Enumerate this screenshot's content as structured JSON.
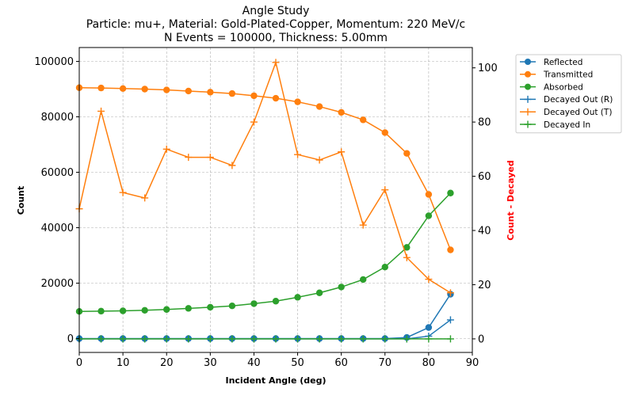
{
  "chart_data": {
    "type": "line",
    "title_lines": [
      "Angle Study",
      "Particle: mu+, Material: Gold-Plated-Copper, Momentum: 220 MeV/c",
      "N Events = 100000, Thickness: 5.00mm"
    ],
    "xlabel": "Incident Angle (deg)",
    "ylabel_left": "Count",
    "ylabel_right": "Count - Decayed",
    "xlim": [
      0,
      90
    ],
    "ylim_left": [
      -5000,
      105000
    ],
    "ylim_right": [
      -5,
      107.5
    ],
    "x_ticks": [
      0,
      10,
      20,
      30,
      40,
      50,
      60,
      70,
      80,
      90
    ],
    "y_ticks_left": [
      0,
      20000,
      40000,
      60000,
      80000,
      100000
    ],
    "y_ticks_right": [
      0,
      20,
      40,
      60,
      80,
      100
    ],
    "grid": true,
    "legend_position": "outside-right-top",
    "x": [
      0,
      5,
      10,
      15,
      20,
      25,
      30,
      35,
      40,
      45,
      50,
      55,
      60,
      65,
      70,
      75,
      80,
      85
    ],
    "series": [
      {
        "name": "Reflected",
        "axis": "left",
        "marker": "circle",
        "color": "#1f77b4",
        "values": [
          0,
          0,
          0,
          0,
          0,
          0,
          0,
          0,
          0,
          0,
          0,
          0,
          0,
          0,
          0,
          400,
          4000,
          16000
        ]
      },
      {
        "name": "Transmitted",
        "axis": "left",
        "marker": "circle",
        "color": "#ff7f0e",
        "values": [
          90500,
          90400,
          90200,
          90000,
          89700,
          89300,
          88900,
          88400,
          87600,
          86700,
          85400,
          83700,
          81600,
          78900,
          74300,
          66800,
          52000,
          32000
        ]
      },
      {
        "name": "Absorbed",
        "axis": "left",
        "marker": "circle",
        "color": "#2ca02c",
        "values": [
          9800,
          9900,
          10000,
          10200,
          10500,
          10900,
          11300,
          11800,
          12600,
          13500,
          14900,
          16500,
          18600,
          21300,
          25800,
          32900,
          44300,
          52500
        ]
      },
      {
        "name": "Decayed Out (R)",
        "axis": "right",
        "marker": "plus",
        "color": "#1f77b4",
        "values": [
          0,
          0,
          0,
          0,
          0,
          0,
          0,
          0,
          0,
          0,
          0,
          0,
          0,
          0,
          0,
          0,
          1,
          7
        ]
      },
      {
        "name": "Decayed Out (T)",
        "axis": "right",
        "marker": "plus",
        "color": "#ff7f0e",
        "values": [
          48,
          84,
          54,
          52,
          70,
          67,
          67,
          64,
          80,
          102,
          68,
          66,
          69,
          42,
          55,
          30,
          22,
          17
        ]
      },
      {
        "name": "Decayed In",
        "axis": "right",
        "marker": "plus",
        "color": "#2ca02c",
        "values": [
          0,
          0,
          0,
          0,
          0,
          0,
          0,
          0,
          0,
          0,
          0,
          0,
          0,
          0,
          0,
          0,
          0,
          0
        ]
      }
    ],
    "colors": {
      "axis": "#000000",
      "grid": "#b0b0b0",
      "right_label": "#ff0000"
    }
  }
}
